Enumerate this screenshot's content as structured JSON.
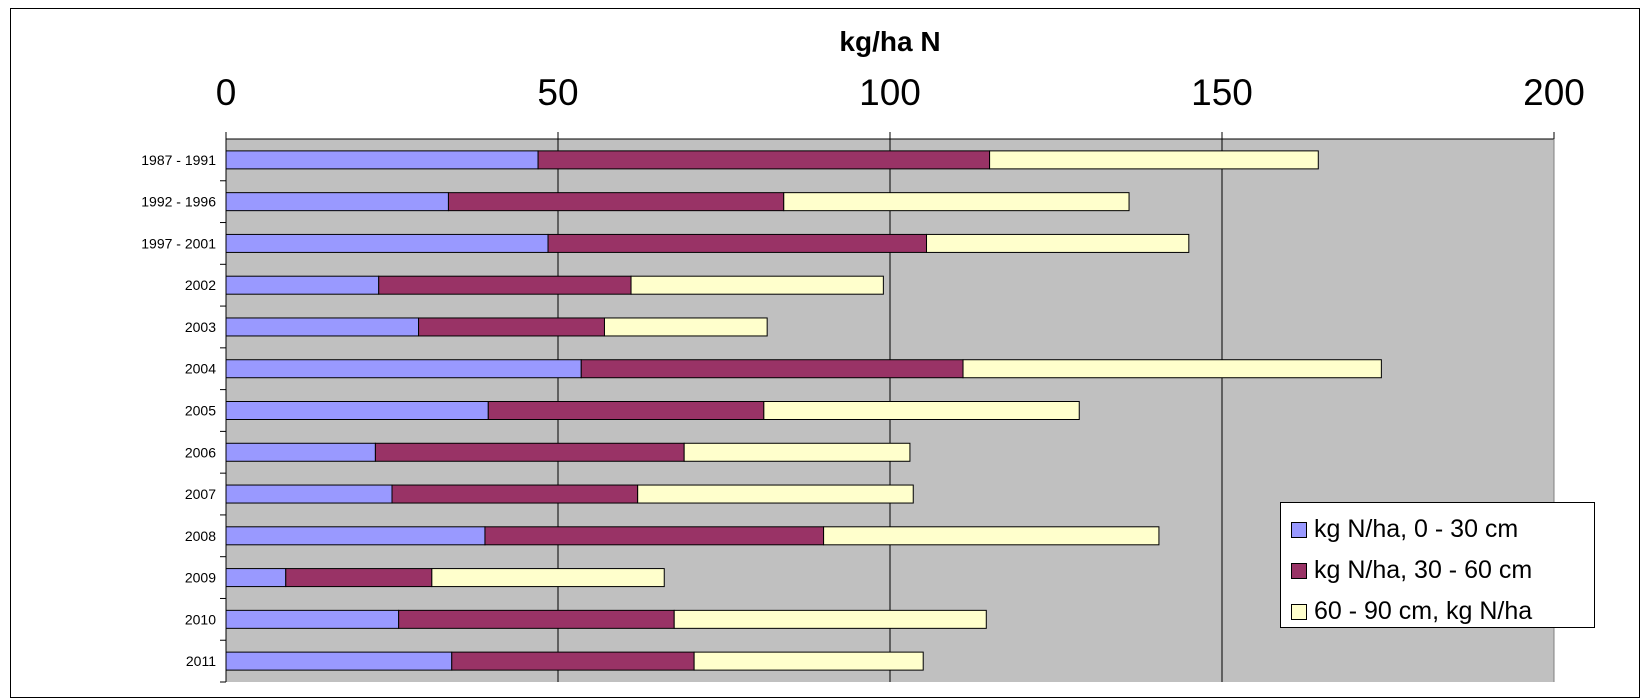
{
  "chart_data": {
    "type": "bar",
    "orientation": "horizontal",
    "stacked": true,
    "title": "",
    "xlabel": "kg/ha N",
    "ylabel": "",
    "xlim": [
      0,
      200
    ],
    "x_ticks": [
      "0",
      "50",
      "100",
      "150",
      "200"
    ],
    "x_axis_position": "top",
    "grid": true,
    "plot_background": "#c0c0c0",
    "legend_position": "bottom-right",
    "categories": [
      "1987 - 1991",
      "1992 - 1996",
      "1997 - 2001",
      "2002",
      "2003",
      "2004",
      "2005",
      "2006",
      "2007",
      "2008",
      "2009",
      "2010",
      "2011"
    ],
    "series": [
      {
        "name": "kg N/ha, 0 - 30 cm",
        "color": "#9999ff",
        "values": [
          47,
          33.5,
          48.5,
          23,
          29,
          53.5,
          39.5,
          22.5,
          25,
          39,
          9,
          26,
          34
        ]
      },
      {
        "name": "kg N/ha, 30 - 60 cm",
        "color": "#993366",
        "values": [
          68,
          50.5,
          57,
          38,
          28,
          57.5,
          41.5,
          46.5,
          37,
          51,
          22,
          41.5,
          36.5
        ]
      },
      {
        "name": "60 - 90 cm, kg N/ha",
        "color": "#ffffcc",
        "values": [
          49.5,
          52,
          39.5,
          38,
          24.5,
          63,
          47.5,
          34,
          41.5,
          50.5,
          35,
          47,
          34.5
        ]
      }
    ]
  }
}
